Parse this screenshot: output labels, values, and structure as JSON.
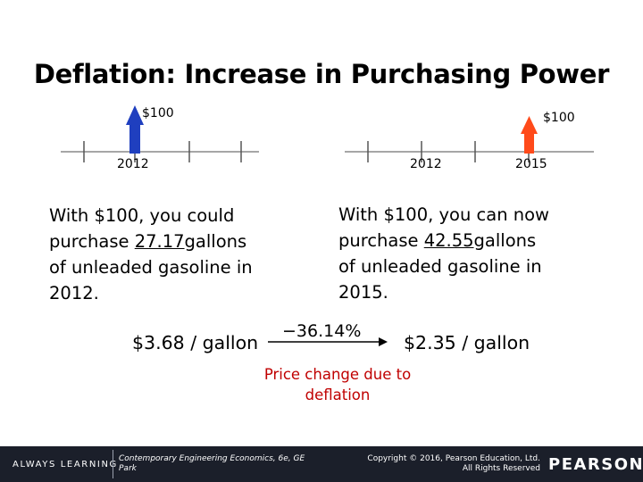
{
  "title": "Deflation: Increase in Purchasing Power",
  "left_timeline": {
    "amount": "$100",
    "year": "2012"
  },
  "right_timeline": {
    "amount": "$100",
    "year_start": "2012",
    "year_end": "2015"
  },
  "left_text": {
    "l1": "With $100, you could",
    "l2_pre": "purchase ",
    "l2_value": "27.17",
    "l2_post": "gallons",
    "l3": "of unleaded gasoline in",
    "l4": "2012."
  },
  "right_text": {
    "l1": "With $100, you can now",
    "l2_pre": "purchase ",
    "l2_value": "42.55",
    "l2_post": "gallons",
    "l3": "of unleaded gasoline in",
    "l4": "2015."
  },
  "price_left": "$3.68 / gallon",
  "change_pct": "−36.14%",
  "price_right": "$2.35 / gallon",
  "caption": {
    "l1": "Price change due to",
    "l2": "deflation"
  },
  "footer": {
    "brand": "ALWAYS LEARNING",
    "book_l1": "Contemporary Engineering Economics, 6e, GE",
    "book_l2": "Park",
    "copyright_l1": "Copyright © 2016, Pearson Education, Ltd.",
    "copyright_l2": "All Rights Reserved",
    "publisher": "PEARSON"
  },
  "colors": {
    "blue_arrow": "#1f3fbf",
    "red_arrow": "#ff4a1a",
    "caption": "#c00000",
    "footer_bg": "#1b1f2a"
  }
}
